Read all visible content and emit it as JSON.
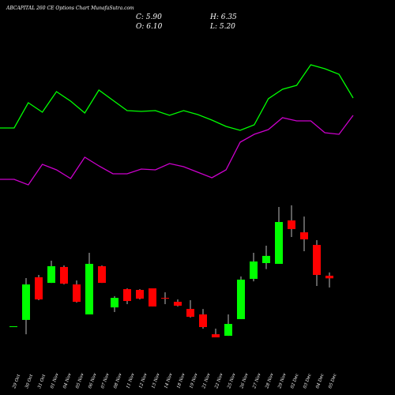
{
  "chart_data": {
    "type": "candlestick",
    "title": "ABCAPITAL 260 CE Options Chart MunafaSutra.com",
    "ohlc_text": {
      "close": "C: 5.90",
      "high": "H: 6.35",
      "open": "O: 6.10",
      "low": "L: 5.20"
    },
    "categories": [
      "29 Oct",
      "30 Oct",
      "31 Oct",
      "01 Nov",
      "04 Nov",
      "05 Nov",
      "06 Nov",
      "07 Nov",
      "08 Nov",
      "11 Nov",
      "12 Nov",
      "13 Nov",
      "14 Nov",
      "18 Nov",
      "19 Nov",
      "21 Nov",
      "22 Nov",
      "25 Nov",
      "26 Nov",
      "27 Nov",
      "28 Nov",
      "29 Nov",
      "02 Dec",
      "03 Dec",
      "04 Dec",
      "05 Dec"
    ],
    "open": [
      2.22,
      2.71,
      5.98,
      5.55,
      6.77,
      5.43,
      3.13,
      6.83,
      3.67,
      5.07,
      5.01,
      5.13,
      4.4,
      4.1,
      3.55,
      3.13,
      1.61,
      1.49,
      2.77,
      5.86,
      7.07,
      7.01,
      10.34,
      9.43,
      8.46,
      6.1
    ],
    "high": [
      2.22,
      5.92,
      6.16,
      7.25,
      6.89,
      5.74,
      7.86,
      6.89,
      4.53,
      5.13,
      5.07,
      5.13,
      4.83,
      4.28,
      4.22,
      3.55,
      2.04,
      3.13,
      6.04,
      7.86,
      8.4,
      11.37,
      11.5,
      10.64,
      8.83,
      6.35
    ],
    "low": [
      2.22,
      1.61,
      4.22,
      5.55,
      5.43,
      4.04,
      3.13,
      5.55,
      3.31,
      3.92,
      4.28,
      3.74,
      3.92,
      3.74,
      2.89,
      2.04,
      1.37,
      1.49,
      2.77,
      5.67,
      6.61,
      7.01,
      9.07,
      7.98,
      5.31,
      5.2
    ],
    "close": [
      2.22,
      5.43,
      4.28,
      6.83,
      5.49,
      4.1,
      7.01,
      5.55,
      4.4,
      4.16,
      4.34,
      3.74,
      4.34,
      3.8,
      2.95,
      2.16,
      1.37,
      2.4,
      5.8,
      7.19,
      7.62,
      10.22,
      9.68,
      8.89,
      6.16,
      5.9
    ],
    "up_color": "#00ff00",
    "down_color": "#ff0000",
    "ylim": [
      0,
      14
    ],
    "y2lim": [
      0,
      100
    ],
    "series": [
      {
        "color": "#00ff00",
        "axis": "y2",
        "values": [
          44,
          44,
          60,
          54,
          67,
          61,
          53.5,
          68,
          61.5,
          55,
          54.5,
          55,
          52,
          55,
          52.5,
          49,
          45,
          42.5,
          46,
          62.5,
          68.5,
          71,
          84,
          81.5,
          78,
          63
        ]
      },
      {
        "color": "#cc00cc",
        "axis": "y2",
        "values": [
          11.5,
          11.5,
          8,
          21,
          17.5,
          12,
          25.5,
          20,
          15,
          15,
          18,
          17.5,
          21.5,
          19.5,
          16,
          12.5,
          17.5,
          35,
          40,
          43,
          50.5,
          48.5,
          48.5,
          41,
          40,
          52
        ]
      }
    ]
  }
}
